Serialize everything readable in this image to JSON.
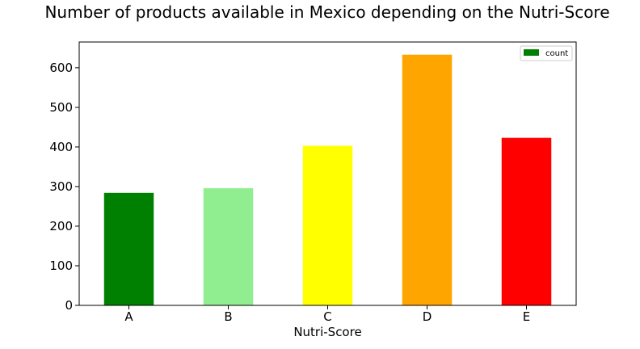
{
  "chart_data": {
    "type": "bar",
    "title": "Number of products available in Mexico depending on the Nutri-Score",
    "xlabel": "Nutri-Score",
    "ylabel": "",
    "categories": [
      "A",
      "B",
      "C",
      "D",
      "E"
    ],
    "series": [
      {
        "name": "count",
        "values": [
          284,
          296,
          403,
          633,
          423
        ]
      }
    ],
    "bar_colors": [
      "#008000",
      "#90ee90",
      "#ffff00",
      "#ffa500",
      "#ff0000"
    ],
    "legend_color": "#008000",
    "ylim": [
      0,
      665
    ],
    "yticks": [
      0,
      100,
      200,
      300,
      400,
      500,
      600
    ],
    "grid": false,
    "legend_position": "top-right"
  }
}
